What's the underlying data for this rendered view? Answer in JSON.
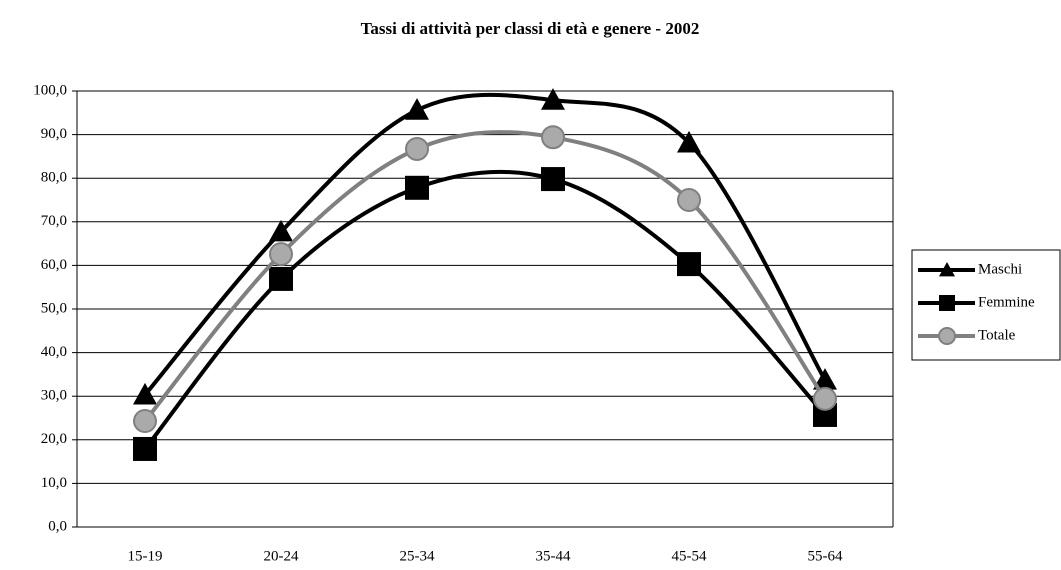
{
  "chart_data": {
    "type": "line",
    "title": "Tassi di attività per classi di età e genere - 2002",
    "categories": [
      "15-19",
      "20-24",
      "25-34",
      "35-44",
      "45-54",
      "55-64"
    ],
    "series": [
      {
        "name": "Maschi",
        "color": "#000000",
        "marker": "triangle",
        "values": [
          30.3,
          67.7,
          95.6,
          97.9,
          88.1,
          33.7
        ]
      },
      {
        "name": "Femmine",
        "color": "#000000",
        "marker": "square",
        "values": [
          17.9,
          56.9,
          77.8,
          79.8,
          60.3,
          25.7
        ]
      },
      {
        "name": "Totale",
        "color": "#808080",
        "marker": "circle",
        "values": [
          24.3,
          62.6,
          86.7,
          89.4,
          75.0,
          29.4
        ]
      }
    ],
    "ylim": [
      0,
      100
    ],
    "yticks": [
      {
        "value": 0,
        "label": "0,0"
      },
      {
        "value": 10,
        "label": "10,0"
      },
      {
        "value": 20,
        "label": "20,0"
      },
      {
        "value": 30,
        "label": "30,0"
      },
      {
        "value": 40,
        "label": "40,0"
      },
      {
        "value": 50,
        "label": "50,0"
      },
      {
        "value": 60,
        "label": "60,0"
      },
      {
        "value": 70,
        "label": "70,0"
      },
      {
        "value": 80,
        "label": "80,0"
      },
      {
        "value": 90,
        "label": "90,0"
      },
      {
        "value": 100,
        "label": "100,0"
      }
    ],
    "grid": true,
    "legend": "right"
  }
}
